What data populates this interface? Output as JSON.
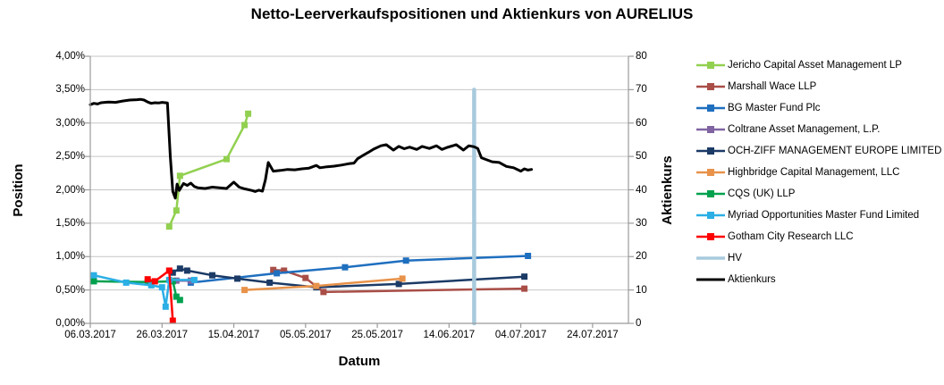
{
  "title": "Netto-Leerverkaufspositionen und Aktienkurs von AURELIUS",
  "chart_data": {
    "type": "line",
    "title": "Netto-Leerverkaufspositionen und Aktienkurs von AURELIUS",
    "legend_position": "right",
    "grid": "horizontal",
    "x_axis": {
      "label": "Datum",
      "epoch_date": "06.03.2017",
      "range_days": [
        0,
        150
      ],
      "tick_days": [
        0,
        20,
        40,
        60,
        80,
        100,
        120,
        140
      ],
      "tick_labels": [
        "06.03.2017",
        "26.03.2017",
        "15.04.2017",
        "05.05.2017",
        "25.05.2017",
        "14.06.2017",
        "04.07.2017",
        "24.07.2017"
      ]
    },
    "y_left": {
      "label": "Position",
      "unit": "%",
      "range": [
        0,
        4
      ],
      "tick_values": [
        0,
        0.5,
        1,
        1.5,
        2,
        2.5,
        3,
        3.5,
        4
      ],
      "tick_labels": [
        "0,00%",
        "0,50%",
        "1,00%",
        "1,50%",
        "2,00%",
        "2,50%",
        "3,00%",
        "3,50%",
        "4,00%"
      ]
    },
    "y_right": {
      "label": "Aktienkurs",
      "range": [
        0,
        80
      ],
      "tick_values": [
        0,
        10,
        20,
        30,
        40,
        50,
        60,
        70,
        80
      ],
      "tick_labels": [
        "0",
        "10",
        "20",
        "30",
        "40",
        "50",
        "60",
        "70",
        "80"
      ]
    },
    "series": [
      {
        "name": "Jericho Capital Asset Management LP",
        "color": "#92D050",
        "axis": "left",
        "marker": true,
        "width": 2.5,
        "points": [
          [
            22,
            1.45
          ],
          [
            24,
            1.69
          ],
          [
            25,
            2.21
          ],
          [
            38,
            2.46
          ],
          [
            43,
            2.97
          ],
          [
            44,
            3.14
          ]
        ]
      },
      {
        "name": "Marshall Wace LLP",
        "color": "#A94E47",
        "axis": "left",
        "marker": true,
        "width": 2.5,
        "points": [
          [
            51,
            0.8
          ],
          [
            54,
            0.79
          ],
          [
            60,
            0.68
          ],
          [
            65,
            0.47
          ],
          [
            121,
            0.52
          ]
        ]
      },
      {
        "name": "BG Master Fund Plc",
        "color": "#1F6FBF",
        "axis": "left",
        "marker": true,
        "width": 2.5,
        "points": [
          [
            28,
            0.61
          ],
          [
            52,
            0.75
          ],
          [
            71,
            0.84
          ],
          [
            88,
            0.94
          ],
          [
            122,
            1.01
          ]
        ]
      },
      {
        "name": "Coltrane Asset Management, L.P.",
        "color": "#8064A2",
        "axis": "left",
        "marker": true,
        "width": 2.5,
        "points": [
          [
            24,
            0.64
          ],
          [
            28,
            0.64
          ]
        ]
      },
      {
        "name": "OCH-ZIFF MANAGEMENT EUROPE LIMITED",
        "color": "#1B3A66",
        "axis": "left",
        "marker": true,
        "width": 2.5,
        "points": [
          [
            23,
            0.76
          ],
          [
            25,
            0.82
          ],
          [
            27,
            0.79
          ],
          [
            34,
            0.72
          ],
          [
            41,
            0.67
          ],
          [
            50,
            0.61
          ],
          [
            63,
            0.54
          ],
          [
            86,
            0.59
          ],
          [
            121,
            0.7
          ]
        ]
      },
      {
        "name": "Highbridge Capital Management, LLC",
        "color": "#E8924A",
        "axis": "left",
        "marker": true,
        "width": 2.5,
        "points": [
          [
            43,
            0.5
          ],
          [
            63,
            0.56
          ],
          [
            87,
            0.67
          ]
        ]
      },
      {
        "name": "CQS (UK) LLP",
        "color": "#00A14E",
        "axis": "left",
        "marker": true,
        "width": 2.5,
        "points": [
          [
            1,
            0.63
          ],
          [
            16,
            0.62
          ],
          [
            23,
            0.63
          ],
          [
            24,
            0.4
          ],
          [
            25,
            0.35
          ]
        ]
      },
      {
        "name": "Myriad Opportunities Master Fund Limited",
        "color": "#2BAFE5",
        "axis": "left",
        "marker": true,
        "width": 2.5,
        "points": [
          [
            1,
            0.72
          ],
          [
            10,
            0.61
          ],
          [
            17,
            0.57
          ],
          [
            20,
            0.54
          ],
          [
            21,
            0.25
          ],
          [
            22,
            0.65
          ],
          [
            29,
            0.65
          ]
        ]
      },
      {
        "name": "Gotham City Research LLC",
        "color": "#FF0000",
        "axis": "left",
        "marker": true,
        "width": 2.5,
        "points": [
          [
            16,
            0.66
          ],
          [
            18,
            0.63
          ],
          [
            22,
            0.79
          ],
          [
            23,
            0.04
          ]
        ]
      },
      {
        "name": "HV",
        "color": "#A8CADD",
        "axis": "right",
        "marker": false,
        "width": 4.5,
        "points": [
          [
            107,
            0
          ],
          [
            107,
            70
          ]
        ]
      },
      {
        "name": "Aktienkurs",
        "color": "#000000",
        "axis": "right",
        "marker": false,
        "width": 3,
        "points": [
          [
            0,
            65.5
          ],
          [
            1,
            65.9
          ],
          [
            2,
            65.7
          ],
          [
            3,
            66.1
          ],
          [
            5,
            66.3
          ],
          [
            7,
            66.2
          ],
          [
            9,
            66.6
          ],
          [
            11,
            66.9
          ],
          [
            13,
            67.0
          ],
          [
            14,
            67.1
          ],
          [
            15,
            66.9
          ],
          [
            16,
            66.3
          ],
          [
            17,
            65.9
          ],
          [
            18,
            66.1
          ],
          [
            19,
            66.0
          ],
          [
            20,
            66.2
          ],
          [
            21.5,
            66.0
          ],
          [
            22.3,
            50.0
          ],
          [
            23,
            39.5
          ],
          [
            23.7,
            37.5
          ],
          [
            24.2,
            41.7
          ],
          [
            24.8,
            39.8
          ],
          [
            26,
            41.9
          ],
          [
            27,
            41.3
          ],
          [
            28,
            42.0
          ],
          [
            29,
            41.0
          ],
          [
            30,
            40.6
          ],
          [
            32,
            40.4
          ],
          [
            34,
            40.8
          ],
          [
            36,
            40.6
          ],
          [
            38,
            40.4
          ],
          [
            40,
            42.3
          ],
          [
            41.5,
            40.8
          ],
          [
            43,
            40.3
          ],
          [
            45,
            39.8
          ],
          [
            46,
            39.5
          ],
          [
            47,
            39.9
          ],
          [
            48,
            39.6
          ],
          [
            48.8,
            43.0
          ],
          [
            49.6,
            48.2
          ],
          [
            51,
            45.6
          ],
          [
            53,
            45.8
          ],
          [
            55,
            46.1
          ],
          [
            57,
            46.0
          ],
          [
            59,
            46.3
          ],
          [
            61,
            46.5
          ],
          [
            63,
            47.3
          ],
          [
            64,
            46.6
          ],
          [
            66,
            46.9
          ],
          [
            68,
            47.1
          ],
          [
            70,
            47.4
          ],
          [
            72,
            47.8
          ],
          [
            73.5,
            48.0
          ],
          [
            74.5,
            49.3
          ],
          [
            76,
            50.3
          ],
          [
            77.5,
            51.2
          ],
          [
            79,
            52.2
          ],
          [
            81,
            53.2
          ],
          [
            82.5,
            53.5
          ],
          [
            84.5,
            51.9
          ],
          [
            86,
            53.0
          ],
          [
            87.5,
            52.3
          ],
          [
            89,
            52.8
          ],
          [
            91,
            52.1
          ],
          [
            92.5,
            53.0
          ],
          [
            94.5,
            52.4
          ],
          [
            96.5,
            53.2
          ],
          [
            98,
            52.1
          ],
          [
            99.5,
            52.7
          ],
          [
            102,
            53.5
          ],
          [
            104,
            51.9
          ],
          [
            105.5,
            53.2
          ],
          [
            107,
            52.9
          ],
          [
            108,
            52.4
          ],
          [
            109,
            49.6
          ],
          [
            110.5,
            49.0
          ],
          [
            112,
            48.4
          ],
          [
            114,
            48.2
          ],
          [
            116,
            47.0
          ],
          [
            118,
            46.6
          ],
          [
            120,
            45.6
          ],
          [
            121,
            46.3
          ],
          [
            122,
            45.9
          ],
          [
            123,
            46.1
          ]
        ]
      }
    ],
    "annotations": {
      "hv_line_day": 107,
      "hv_label": "HV"
    },
    "colors": {
      "grid": "#C6C6C6",
      "axis": "#9B9B9B",
      "text": "#000000",
      "background": "#FFFFFF"
    }
  }
}
